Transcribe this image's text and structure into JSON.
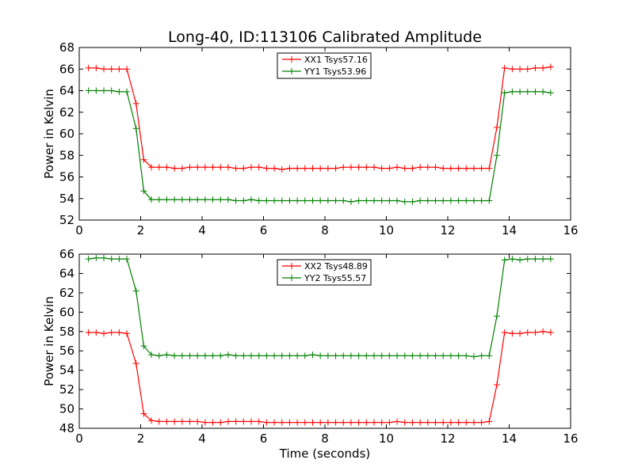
{
  "chart_data": [
    {
      "type": "line",
      "title": "Long-40, ID:113106 Calibrated Amplitude",
      "xlabel": "",
      "ylabel": "Power in Kelvin",
      "xlim": [
        0,
        16
      ],
      "ylim": [
        52,
        68
      ],
      "xticks": [
        "0",
        "2",
        "4",
        "6",
        "8",
        "10",
        "12",
        "14",
        "16"
      ],
      "yticks": [
        "52",
        "54",
        "56",
        "58",
        "60",
        "62",
        "64",
        "66",
        "68"
      ],
      "grid": false,
      "legend_position": "top-center",
      "x": [
        0.3,
        0.55,
        0.8,
        1.05,
        1.3,
        1.55,
        1.85,
        2.1,
        2.35,
        2.6,
        2.85,
        3.1,
        3.35,
        3.6,
        3.85,
        4.1,
        4.35,
        4.6,
        4.85,
        5.1,
        5.35,
        5.6,
        5.85,
        6.1,
        6.35,
        6.6,
        6.85,
        7.1,
        7.35,
        7.6,
        7.85,
        8.1,
        8.35,
        8.6,
        8.85,
        9.1,
        9.35,
        9.6,
        9.85,
        10.1,
        10.35,
        10.6,
        10.85,
        11.1,
        11.35,
        11.6,
        11.85,
        12.1,
        12.35,
        12.6,
        12.85,
        13.1,
        13.35,
        13.6,
        13.85,
        14.1,
        14.35,
        14.6,
        14.85,
        15.1,
        15.35
      ],
      "series": [
        {
          "name": "XX1 Tsys57.16",
          "color": "#ff0000",
          "values": [
            66.1,
            66.1,
            66.0,
            66.0,
            66.0,
            66.0,
            62.8,
            57.6,
            56.9,
            56.9,
            56.9,
            56.8,
            56.8,
            56.9,
            56.9,
            56.9,
            56.9,
            56.9,
            56.9,
            56.8,
            56.8,
            56.9,
            56.9,
            56.8,
            56.8,
            56.7,
            56.8,
            56.8,
            56.8,
            56.8,
            56.8,
            56.8,
            56.8,
            56.9,
            56.9,
            56.9,
            56.9,
            56.9,
            56.8,
            56.8,
            56.9,
            56.8,
            56.8,
            56.9,
            56.9,
            56.9,
            56.8,
            56.8,
            56.8,
            56.8,
            56.8,
            56.8,
            56.8,
            60.6,
            66.1,
            66.0,
            66.0,
            66.0,
            66.1,
            66.1,
            66.2
          ]
        },
        {
          "name": "YY1 Tsys53.96",
          "color": "#008000",
          "values": [
            64.0,
            64.0,
            64.0,
            64.0,
            63.9,
            63.9,
            60.5,
            54.7,
            53.9,
            53.9,
            53.9,
            53.9,
            53.9,
            53.9,
            53.9,
            53.9,
            53.9,
            53.9,
            53.9,
            53.8,
            53.8,
            53.9,
            53.8,
            53.8,
            53.8,
            53.8,
            53.8,
            53.8,
            53.8,
            53.8,
            53.8,
            53.8,
            53.8,
            53.8,
            53.7,
            53.8,
            53.8,
            53.8,
            53.8,
            53.8,
            53.8,
            53.7,
            53.7,
            53.8,
            53.8,
            53.8,
            53.8,
            53.8,
            53.8,
            53.8,
            53.8,
            53.8,
            53.8,
            58.0,
            63.8,
            63.9,
            63.9,
            63.9,
            63.9,
            63.9,
            63.8
          ]
        }
      ]
    },
    {
      "type": "line",
      "title": "",
      "xlabel": "Time (seconds)",
      "ylabel": "Power in Kelvin",
      "xlim": [
        0,
        16
      ],
      "ylim": [
        48,
        66
      ],
      "xticks": [
        "0",
        "2",
        "4",
        "6",
        "8",
        "10",
        "12",
        "14",
        "16"
      ],
      "yticks": [
        "48",
        "50",
        "52",
        "54",
        "56",
        "58",
        "60",
        "62",
        "64",
        "66"
      ],
      "grid": false,
      "legend_position": "top-center",
      "x": [
        0.3,
        0.55,
        0.8,
        1.05,
        1.3,
        1.55,
        1.85,
        2.1,
        2.35,
        2.6,
        2.85,
        3.1,
        3.35,
        3.6,
        3.85,
        4.1,
        4.35,
        4.6,
        4.85,
        5.1,
        5.35,
        5.6,
        5.85,
        6.1,
        6.35,
        6.6,
        6.85,
        7.1,
        7.35,
        7.6,
        7.85,
        8.1,
        8.35,
        8.6,
        8.85,
        9.1,
        9.35,
        9.6,
        9.85,
        10.1,
        10.35,
        10.6,
        10.85,
        11.1,
        11.35,
        11.6,
        11.85,
        12.1,
        12.35,
        12.6,
        12.85,
        13.1,
        13.35,
        13.6,
        13.85,
        14.1,
        14.35,
        14.6,
        14.85,
        15.1,
        15.35
      ],
      "series": [
        {
          "name": "XX2 Tsys48.89",
          "color": "#ff0000",
          "values": [
            57.9,
            57.9,
            57.8,
            57.9,
            57.9,
            57.8,
            54.7,
            49.5,
            48.8,
            48.7,
            48.7,
            48.7,
            48.7,
            48.7,
            48.7,
            48.6,
            48.6,
            48.6,
            48.7,
            48.7,
            48.7,
            48.7,
            48.7,
            48.6,
            48.6,
            48.6,
            48.6,
            48.6,
            48.6,
            48.6,
            48.6,
            48.6,
            48.6,
            48.6,
            48.6,
            48.6,
            48.6,
            48.6,
            48.6,
            48.6,
            48.7,
            48.6,
            48.6,
            48.6,
            48.6,
            48.6,
            48.6,
            48.6,
            48.6,
            48.6,
            48.6,
            48.6,
            48.7,
            52.5,
            57.9,
            57.8,
            57.8,
            57.9,
            57.9,
            58.0,
            57.9
          ]
        },
        {
          "name": "YY2 Tsys55.57",
          "color": "#008000",
          "values": [
            65.5,
            65.6,
            65.6,
            65.5,
            65.5,
            65.5,
            62.2,
            56.5,
            55.6,
            55.5,
            55.6,
            55.5,
            55.5,
            55.5,
            55.5,
            55.5,
            55.5,
            55.5,
            55.6,
            55.5,
            55.5,
            55.5,
            55.5,
            55.5,
            55.5,
            55.5,
            55.5,
            55.5,
            55.5,
            55.6,
            55.5,
            55.5,
            55.5,
            55.5,
            55.5,
            55.5,
            55.5,
            55.5,
            55.5,
            55.5,
            55.5,
            55.5,
            55.5,
            55.5,
            55.5,
            55.5,
            55.5,
            55.5,
            55.5,
            55.5,
            55.4,
            55.5,
            55.5,
            59.6,
            65.4,
            65.5,
            65.4,
            65.5,
            65.5,
            65.5,
            65.5
          ]
        }
      ]
    }
  ]
}
